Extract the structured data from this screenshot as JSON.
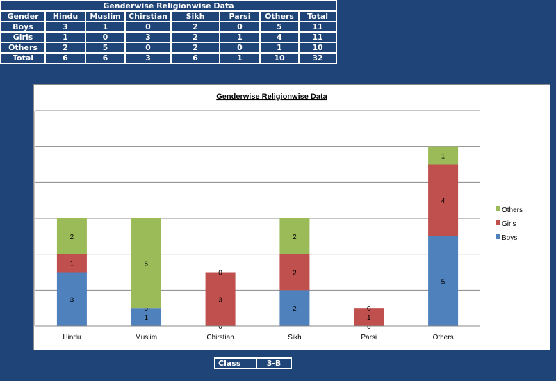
{
  "table": {
    "title": "Genderwise Religionwise Data",
    "headers": [
      "Gender",
      "Hindu",
      "Muslim",
      "Chirstian",
      "Sikh",
      "Parsi",
      "Others",
      "Total"
    ],
    "rows": [
      [
        "Boys",
        "3",
        "1",
        "0",
        "2",
        "0",
        "5",
        "11"
      ],
      [
        "Girls",
        "1",
        "0",
        "3",
        "2",
        "1",
        "4",
        "11"
      ],
      [
        "Others",
        "2",
        "5",
        "0",
        "2",
        "0",
        "1",
        "10"
      ],
      [
        "Total",
        "6",
        "6",
        "3",
        "6",
        "1",
        "10",
        "32"
      ]
    ]
  },
  "class_box": {
    "label": "Class",
    "value": "3-B"
  },
  "chart_data": {
    "type": "bar",
    "stacked": true,
    "title": "Genderwise Religionwise  Data",
    "categories": [
      "Hindu",
      "Muslim",
      "Chirstian",
      "Sikh",
      "Parsi",
      "Others"
    ],
    "series": [
      {
        "name": "Boys",
        "values": [
          3,
          1,
          0,
          2,
          0,
          5
        ],
        "color": "#4f81bd"
      },
      {
        "name": "Girls",
        "values": [
          1,
          0,
          3,
          2,
          1,
          4
        ],
        "color": "#c0504d"
      },
      {
        "name": "Others",
        "values": [
          2,
          5,
          0,
          2,
          0,
          1
        ],
        "color": "#9bbb59"
      }
    ],
    "ylim": [
      0,
      12
    ],
    "yticks": [
      0,
      2,
      4,
      6,
      8,
      10,
      12
    ],
    "grid": true,
    "data_labels": true,
    "legend": "right"
  }
}
